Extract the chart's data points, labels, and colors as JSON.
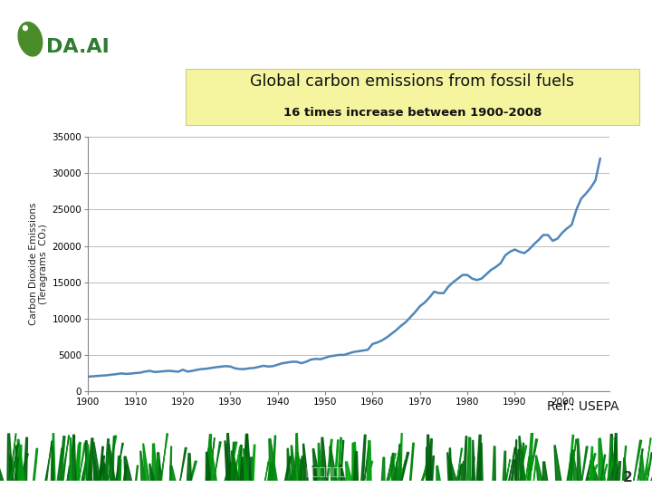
{
  "title_line1": "Global carbon emissions from fossil fuels",
  "title_line2": "16 times increase between 1900-2008",
  "ylabel_line1": "Carbon Dioxide Emissions",
  "ylabel_line2": "(Teragrams  CO₂)",
  "xlim": [
    1900,
    2010
  ],
  "ylim": [
    0,
    35000
  ],
  "yticks": [
    0,
    5000,
    10000,
    15000,
    20000,
    25000,
    30000,
    35000
  ],
  "xticks": [
    1900,
    1910,
    1920,
    1930,
    1940,
    1950,
    1960,
    1970,
    1980,
    1990,
    2000
  ],
  "line_color": "#4f87b8",
  "background_color": "#ffffff",
  "ref_text": "Ref.: USEPA",
  "data_x": [
    1900,
    1901,
    1902,
    1903,
    1904,
    1905,
    1906,
    1907,
    1908,
    1909,
    1910,
    1911,
    1912,
    1913,
    1914,
    1915,
    1916,
    1917,
    1918,
    1919,
    1920,
    1921,
    1922,
    1923,
    1924,
    1925,
    1926,
    1927,
    1928,
    1929,
    1930,
    1931,
    1932,
    1933,
    1934,
    1935,
    1936,
    1937,
    1938,
    1939,
    1940,
    1941,
    1942,
    1943,
    1944,
    1945,
    1946,
    1947,
    1948,
    1949,
    1950,
    1951,
    1952,
    1953,
    1954,
    1955,
    1956,
    1957,
    1958,
    1959,
    1960,
    1961,
    1962,
    1963,
    1964,
    1965,
    1966,
    1967,
    1968,
    1969,
    1970,
    1971,
    1972,
    1973,
    1974,
    1975,
    1976,
    1977,
    1978,
    1979,
    1980,
    1981,
    1982,
    1983,
    1984,
    1985,
    1986,
    1987,
    1988,
    1989,
    1990,
    1991,
    1992,
    1993,
    1994,
    1995,
    1996,
    1997,
    1998,
    1999,
    2000,
    2001,
    2002,
    2003,
    2004,
    2005,
    2006,
    2007,
    2008
  ],
  "data_y": [
    2000,
    2050,
    2100,
    2150,
    2200,
    2280,
    2350,
    2450,
    2380,
    2420,
    2500,
    2550,
    2700,
    2800,
    2650,
    2680,
    2750,
    2800,
    2750,
    2680,
    2950,
    2700,
    2800,
    2950,
    3050,
    3100,
    3200,
    3300,
    3380,
    3450,
    3400,
    3150,
    3050,
    3050,
    3150,
    3200,
    3350,
    3500,
    3400,
    3450,
    3650,
    3850,
    3950,
    4050,
    4050,
    3850,
    4050,
    4350,
    4450,
    4400,
    4600,
    4800,
    4900,
    5000,
    5000,
    5200,
    5400,
    5500,
    5600,
    5700,
    6500,
    6700,
    7000,
    7400,
    7900,
    8400,
    9000,
    9500,
    10200,
    10900,
    11700,
    12200,
    12900,
    13700,
    13500,
    13500,
    14400,
    15000,
    15500,
    16000,
    16000,
    15500,
    15300,
    15500,
    16100,
    16700,
    17100,
    17600,
    18700,
    19200,
    19500,
    19200,
    19000,
    19500,
    20200,
    20800,
    21500,
    21500,
    20700,
    21000,
    21800,
    22400,
    22900,
    25000,
    26500,
    27200,
    28000,
    29000,
    32000
  ]
}
